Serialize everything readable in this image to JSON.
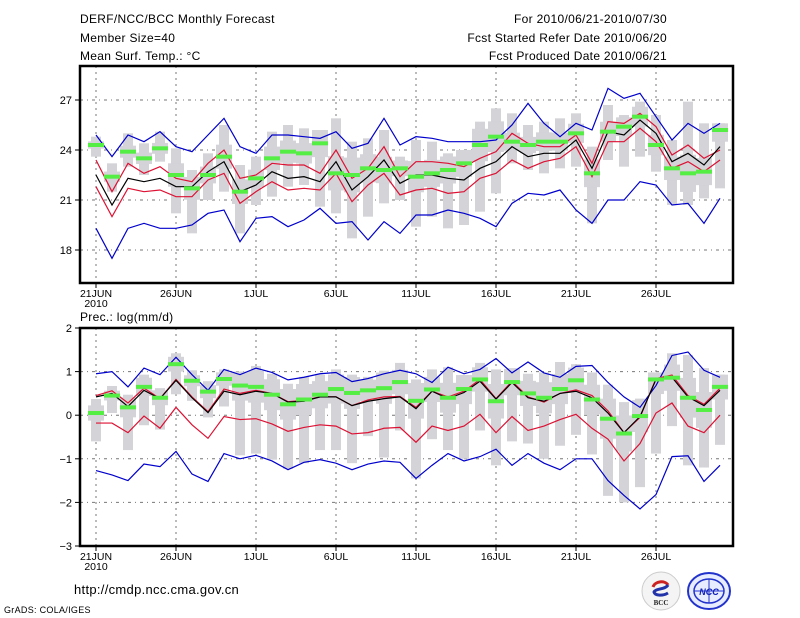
{
  "header": {
    "title": "DERF/NCC/BCC Monthly Forecast",
    "member_size": "Member Size=40",
    "variable_top": "Mean Surf. Temp.: °C",
    "period": "For 2010/06/21-2010/07/30",
    "started_refer": "Fcst Started Refer Date 2010/06/20",
    "produced": "Fcst Produced Date 2010/06/21"
  },
  "footer": {
    "url": "http://cmdp.ncc.cma.gov.cn",
    "credit": "GrADS: COLA/IGES",
    "logo_left": "BCC",
    "logo_right": "NCC"
  },
  "colors": {
    "envelope": "#0000cc",
    "spread": "#dd1133",
    "mean": "#000000",
    "box": "#d3d3d8",
    "marker": "#55ee44",
    "grid": "#777777"
  },
  "chart_data": [
    {
      "type": "line",
      "title": "Mean Surf. Temp.: °C",
      "xlabel": "",
      "ylabel": "°C",
      "ylim": [
        16,
        29
      ],
      "yticks": [
        18,
        21,
        24,
        27
      ],
      "grid": true,
      "x_start": "2010-06-21",
      "x_days": 40,
      "xtick_labels": [
        {
          "day": 0,
          "label": "21JUN",
          "sub": "2010"
        },
        {
          "day": 5,
          "label": "26JUN"
        },
        {
          "day": 10,
          "label": "1JUL"
        },
        {
          "day": 15,
          "label": "6JUL"
        },
        {
          "day": 20,
          "label": "11JUL"
        },
        {
          "day": 25,
          "label": "16JUL"
        },
        {
          "day": 30,
          "label": "21JUL"
        },
        {
          "day": 35,
          "label": "26JUL"
        }
      ],
      "series": [
        {
          "name": "max",
          "role": "envelope",
          "values": [
            24.9,
            23.6,
            24.9,
            24.5,
            25.1,
            24.2,
            23.9,
            24.9,
            25.9,
            24.2,
            23.8,
            24.9,
            24.9,
            24.8,
            24.7,
            25.1,
            24.1,
            24.4,
            25.9,
            24.3,
            24.8,
            24.7,
            24.5,
            24.5,
            24.5,
            24.6,
            25.5,
            26.8,
            25.6,
            24.8,
            25.6,
            25.2,
            27.7,
            27.1,
            27.4,
            26.0,
            24.6,
            25.6,
            25.0,
            25.6
          ]
        },
        {
          "name": "min",
          "role": "envelope",
          "values": [
            19.3,
            17.5,
            19.3,
            19.6,
            19.3,
            19.3,
            19.5,
            20.2,
            20.4,
            18.5,
            19.9,
            20.0,
            19.4,
            19.8,
            20.5,
            19.6,
            19.7,
            18.6,
            19.7,
            19.0,
            20.1,
            20.1,
            20.4,
            20.2,
            19.9,
            19.4,
            20.8,
            21.4,
            21.3,
            21.6,
            20.4,
            19.6,
            21.0,
            21.0,
            22.1,
            21.9,
            20.7,
            20.8,
            19.6,
            21.1
          ]
        },
        {
          "name": "mean+sd",
          "role": "spread",
          "values": [
            23.4,
            21.5,
            23.2,
            22.6,
            23.0,
            22.3,
            22.1,
            23.2,
            24.0,
            22.3,
            22.5,
            23.2,
            23.1,
            23.1,
            22.6,
            24.0,
            22.3,
            22.9,
            24.2,
            22.4,
            23.3,
            23.3,
            23.2,
            23.0,
            23.5,
            23.9,
            25.0,
            24.4,
            24.2,
            24.2,
            24.9,
            23.2,
            25.7,
            25.6,
            26.2,
            25.4,
            23.7,
            24.3,
            23.5,
            24.0
          ]
        },
        {
          "name": "mean-sd",
          "role": "spread",
          "values": [
            21.8,
            20.0,
            21.7,
            21.5,
            21.6,
            21.2,
            21.2,
            22.2,
            22.6,
            20.8,
            21.5,
            22.1,
            21.6,
            21.7,
            21.6,
            22.6,
            20.9,
            21.9,
            22.6,
            21.3,
            21.6,
            21.7,
            21.4,
            21.5,
            22.3,
            22.6,
            23.4,
            22.9,
            23.3,
            23.5,
            24.2,
            22.4,
            24.5,
            24.5,
            25.3,
            24.5,
            22.9,
            23.3,
            22.7,
            23.4
          ]
        },
        {
          "name": "mean",
          "role": "mean",
          "values": [
            22.5,
            20.7,
            22.3,
            22.1,
            22.3,
            21.8,
            21.8,
            22.7,
            23.3,
            21.5,
            21.9,
            22.7,
            22.3,
            22.4,
            22.1,
            23.3,
            21.6,
            22.4,
            23.4,
            22.0,
            22.5,
            22.5,
            22.3,
            22.2,
            22.9,
            23.3,
            24.2,
            23.6,
            23.8,
            23.8,
            24.6,
            22.9,
            25.1,
            24.9,
            25.8,
            25.0,
            23.3,
            23.8,
            23.1,
            24.2
          ]
        },
        {
          "name": "box_hi",
          "role": "box",
          "values": [
            24.8,
            23.2,
            25.0,
            24.4,
            25.1,
            24.1,
            22.8,
            23.8,
            25.5,
            23.1,
            23.6,
            25.1,
            25.5,
            25.3,
            25.2,
            25.9,
            24.5,
            24.7,
            25.2,
            23.6,
            24.6,
            24.5,
            23.8,
            24.0,
            25.7,
            26.5,
            26.2,
            25.5,
            25.7,
            25.9,
            26.2,
            24.2,
            26.7,
            26.1,
            26.9,
            26.1,
            24.6,
            26.9,
            25.6,
            25.6
          ]
        },
        {
          "name": "box_lo",
          "role": "box",
          "values": [
            23.6,
            21.5,
            23.0,
            22.5,
            23.3,
            20.2,
            19.0,
            21.0,
            21.5,
            19.0,
            20.7,
            21.2,
            21.8,
            21.9,
            20.6,
            20.2,
            18.7,
            20.0,
            20.8,
            21.0,
            19.4,
            20.0,
            19.3,
            19.5,
            20.3,
            21.4,
            23.2,
            22.8,
            22.6,
            22.9,
            23.0,
            19.6,
            23.4,
            23.0,
            23.6,
            22.7,
            20.7,
            20.7,
            21.1,
            21.7
          ]
        },
        {
          "name": "ensemble_control",
          "role": "marker",
          "values": [
            24.3,
            22.4,
            23.9,
            23.5,
            24.1,
            22.5,
            21.7,
            22.5,
            23.6,
            21.5,
            22.3,
            23.5,
            23.9,
            23.8,
            24.4,
            22.6,
            22.5,
            22.9,
            22.8,
            22.9,
            22.4,
            22.6,
            22.8,
            23.2,
            24.3,
            24.8,
            24.5,
            24.3,
            24.5,
            24.5,
            25.0,
            22.6,
            25.1,
            25.4,
            26.0,
            24.3,
            22.9,
            22.6,
            22.7,
            25.2
          ]
        }
      ]
    },
    {
      "type": "line",
      "title": "Prec.: log(mm/d)",
      "xlabel": "",
      "ylabel": "log(mm/d)",
      "ylim": [
        -3,
        2
      ],
      "yticks": [
        -3,
        -2,
        -1,
        0,
        1,
        2
      ],
      "grid": true,
      "x_start": "2010-06-21",
      "x_days": 40,
      "xtick_labels": [
        {
          "day": 0,
          "label": "21JUN",
          "sub": "2010"
        },
        {
          "day": 5,
          "label": "26JUN"
        },
        {
          "day": 10,
          "label": "1JUL"
        },
        {
          "day": 15,
          "label": "6JUL"
        },
        {
          "day": 20,
          "label": "11JUL"
        },
        {
          "day": 25,
          "label": "16JUL"
        },
        {
          "day": 30,
          "label": "21JUL"
        },
        {
          "day": 35,
          "label": "26JUL"
        }
      ],
      "series": [
        {
          "name": "max",
          "role": "envelope",
          "values": [
            0.95,
            1.0,
            0.65,
            1.08,
            0.93,
            1.33,
            0.93,
            0.57,
            1.05,
            0.93,
            1.08,
            0.98,
            0.81,
            0.87,
            0.95,
            0.98,
            0.77,
            0.84,
            0.95,
            1.03,
            0.95,
            0.75,
            1.1,
            0.95,
            1.05,
            1.3,
            0.97,
            1.22,
            0.97,
            0.87,
            1.12,
            1.14,
            0.75,
            0.42,
            0.18,
            0.68,
            1.37,
            1.45,
            1.03,
            0.87
          ]
        },
        {
          "name": "min",
          "role": "envelope",
          "values": [
            -1.27,
            -1.37,
            -1.5,
            -1.12,
            -1.18,
            -0.83,
            -1.35,
            -1.52,
            -0.88,
            -1.0,
            -0.92,
            -1.05,
            -1.25,
            -1.08,
            -1.02,
            -1.1,
            -1.25,
            -1.12,
            -1.05,
            -1.08,
            -1.45,
            -1.15,
            -0.88,
            -1.05,
            -0.95,
            -0.78,
            -1.15,
            -0.88,
            -1.1,
            -1.25,
            -1.0,
            -1.0,
            -1.5,
            -1.84,
            -2.15,
            -1.82,
            -0.95,
            -0.93,
            -1.52,
            -1.15
          ]
        },
        {
          "name": "mean+sd",
          "role": "spread",
          "values": [
            0.45,
            0.56,
            0.28,
            0.62,
            0.38,
            0.82,
            0.42,
            0.08,
            0.6,
            0.5,
            0.57,
            0.5,
            0.31,
            0.34,
            0.42,
            0.42,
            0.22,
            0.35,
            0.42,
            0.43,
            0.18,
            0.55,
            0.42,
            0.55,
            0.82,
            0.38,
            0.78,
            0.42,
            0.3,
            0.5,
            0.58,
            0.45,
            0.1,
            -0.4,
            -0.05,
            0.84,
            0.92,
            0.45,
            0.25,
            0.62
          ]
        },
        {
          "name": "mean-sd",
          "role": "spread",
          "values": [
            -0.18,
            -0.18,
            -0.4,
            -0.02,
            -0.3,
            0.18,
            -0.22,
            -0.53,
            -0.03,
            -0.1,
            -0.08,
            -0.2,
            -0.37,
            -0.28,
            -0.22,
            -0.25,
            -0.43,
            -0.4,
            -0.3,
            -0.28,
            -0.62,
            -0.25,
            -0.35,
            -0.25,
            0.02,
            -0.4,
            -0.03,
            -0.35,
            -0.25,
            -0.1,
            0.02,
            -0.3,
            -0.55,
            -1.05,
            -0.65,
            0.05,
            0.28,
            -0.25,
            -0.4,
            0.0
          ]
        },
        {
          "name": "mean",
          "role": "mean",
          "values": [
            0.42,
            0.5,
            0.2,
            0.57,
            0.38,
            0.8,
            0.4,
            0.06,
            0.55,
            0.47,
            0.55,
            0.5,
            0.3,
            0.32,
            0.42,
            0.42,
            0.22,
            0.32,
            0.38,
            0.42,
            0.15,
            0.55,
            0.38,
            0.52,
            0.78,
            0.37,
            0.75,
            0.4,
            0.32,
            0.5,
            0.55,
            0.4,
            0.05,
            -0.4,
            -0.03,
            0.82,
            0.87,
            0.42,
            0.22,
            0.57
          ]
        },
        {
          "name": "box_hi",
          "role": "box",
          "values": [
            0.37,
            0.67,
            0.47,
            0.93,
            0.62,
            1.42,
            1.03,
            0.78,
            1.05,
            1.0,
            1.13,
            0.95,
            0.72,
            0.88,
            0.93,
            1.05,
            0.93,
            0.88,
            1.02,
            1.2,
            0.82,
            1.05,
            1.1,
            0.92,
            1.2,
            1.05,
            1.08,
            0.95,
            0.98,
            1.22,
            1.17,
            0.98,
            0.7,
            0.3,
            0.38,
            0.98,
            1.42,
            1.38,
            1.08,
            0.93
          ]
        },
        {
          "name": "box_lo",
          "role": "box",
          "values": [
            -0.6,
            0.05,
            -0.8,
            -0.23,
            -0.33,
            0.48,
            0.33,
            -0.05,
            0.2,
            -0.92,
            -0.88,
            -1.02,
            -1.23,
            -1.1,
            -0.8,
            -0.8,
            -1.1,
            -0.48,
            -0.97,
            -0.35,
            -1.45,
            -0.55,
            -0.8,
            -1.0,
            -0.35,
            -1.15,
            -0.6,
            -0.65,
            -1.0,
            -0.7,
            -0.45,
            -0.9,
            -1.85,
            -2.0,
            -1.65,
            -0.88,
            -0.25,
            -1.15,
            -1.2,
            -0.68
          ]
        },
        {
          "name": "ensemble_control",
          "role": "marker",
          "values": [
            0.05,
            0.45,
            0.18,
            0.65,
            0.4,
            1.17,
            0.79,
            0.54,
            0.83,
            0.68,
            0.65,
            0.47,
            0.25,
            0.36,
            0.47,
            0.6,
            0.51,
            0.57,
            0.62,
            0.76,
            0.33,
            0.59,
            0.4,
            0.6,
            0.82,
            0.32,
            0.76,
            0.5,
            0.4,
            0.6,
            0.8,
            0.36,
            -0.08,
            -0.42,
            -0.02,
            0.82,
            0.86,
            0.4,
            0.12,
            0.65
          ]
        }
      ]
    }
  ]
}
